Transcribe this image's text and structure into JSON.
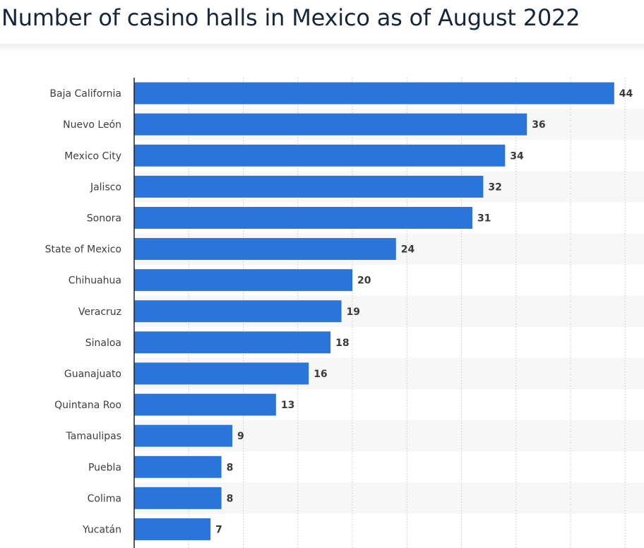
{
  "header": {
    "title": "Number of casino halls in Mexico as of August 2022"
  },
  "colors": {
    "bar": "#2a75dc",
    "band": "#f7f7f7",
    "grid": "#d4d4d4",
    "axis": "#222222",
    "title": "#17263a"
  },
  "chart_data": {
    "type": "bar",
    "orientation": "horizontal",
    "title": "Number of casino halls in Mexico as of August 2022",
    "xlabel": "",
    "ylabel": "",
    "xlim": [
      0,
      45
    ],
    "grid": true,
    "categories": [
      "Baja California",
      "Nuevo León",
      "Mexico City",
      "Jalisco",
      "Sonora",
      "State of Mexico",
      "Chihuahua",
      "Veracruz",
      "Sinaloa",
      "Guanajuato",
      "Quintana Roo",
      "Tamaulipas",
      "Puebla",
      "Colima",
      "Yucatán"
    ],
    "values": [
      44,
      36,
      34,
      32,
      31,
      24,
      20,
      19,
      18,
      16,
      13,
      9,
      8,
      8,
      7
    ],
    "data_labels": true
  }
}
